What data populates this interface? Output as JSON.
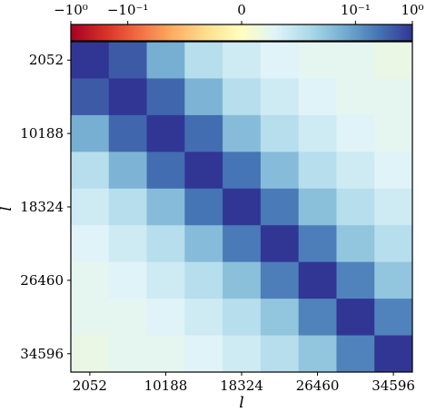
{
  "chart_data": {
    "type": "heatmap",
    "xlabel": "l",
    "ylabel": "l",
    "x_tick_labels": [
      "2052",
      "10188",
      "18324",
      "26460",
      "34596"
    ],
    "y_tick_labels": [
      "2052",
      "10188",
      "18324",
      "26460",
      "34596"
    ],
    "tick_bins": [
      0,
      2,
      4,
      6,
      8
    ],
    "bins": 9,
    "colorbar": {
      "tick_labels": [
        "−10⁰",
        "−10⁻¹",
        "0",
        "10⁻¹",
        "10⁰"
      ],
      "tick_values": [
        -1,
        -0.1,
        0,
        0.1,
        1
      ],
      "scale": "symlog",
      "placement": "top",
      "colors": [
        "#a50026",
        "#d73027",
        "#f46d43",
        "#fdae61",
        "#fee090",
        "#ffffbf",
        "#e0f3f8",
        "#abd9e9",
        "#74add1",
        "#4575b4",
        "#313695"
      ]
    },
    "matrix": [
      [
        1.0,
        0.45,
        0.06,
        0.012,
        0.008,
        0.006,
        0.005,
        0.005,
        0.004
      ],
      [
        0.45,
        1.0,
        0.35,
        0.05,
        0.012,
        0.008,
        0.006,
        0.005,
        0.005
      ],
      [
        0.06,
        0.35,
        1.0,
        0.3,
        0.04,
        0.012,
        0.008,
        0.006,
        0.005
      ],
      [
        0.012,
        0.05,
        0.3,
        1.0,
        0.25,
        0.04,
        0.012,
        0.008,
        0.006
      ],
      [
        0.008,
        0.012,
        0.04,
        0.25,
        1.0,
        0.22,
        0.035,
        0.012,
        0.008
      ],
      [
        0.006,
        0.008,
        0.012,
        0.04,
        0.22,
        1.0,
        0.2,
        0.03,
        0.012
      ],
      [
        0.005,
        0.006,
        0.008,
        0.012,
        0.035,
        0.2,
        1.0,
        0.18,
        0.03
      ],
      [
        0.005,
        0.005,
        0.006,
        0.008,
        0.012,
        0.03,
        0.18,
        1.0,
        0.18
      ],
      [
        0.004,
        0.005,
        0.005,
        0.006,
        0.008,
        0.012,
        0.03,
        0.18,
        1.0
      ]
    ]
  }
}
